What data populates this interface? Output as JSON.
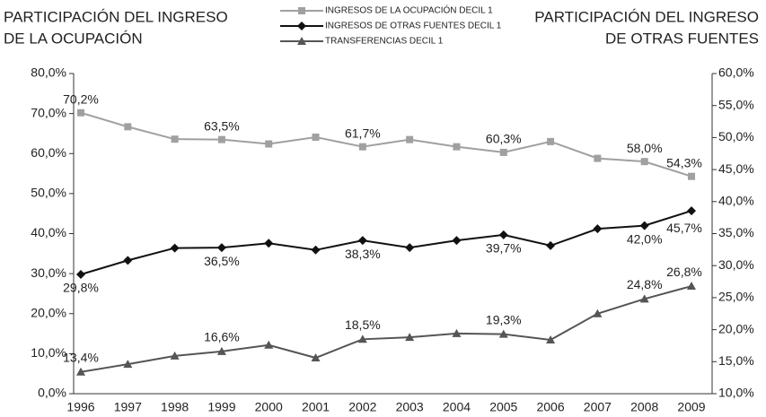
{
  "chart_data": {
    "type": "line",
    "y_label": [
      "PARTICIPACIÓN DEL INGRESO",
      "DE LA OCUPACIÓN"
    ],
    "y2_label": [
      "PARTICIPACIÓN DEL INGRESO",
      "DE OTRAS FUENTES"
    ],
    "categories": [
      "1996",
      "1997",
      "1998",
      "1999",
      "2000",
      "2001",
      "2002",
      "2003",
      "2004",
      "2005",
      "2006",
      "2007",
      "2008",
      "2009"
    ],
    "series": [
      {
        "name": "INGRESOS DE LA OCUPACIÓN DECIL 1",
        "color": "#a0a0a0",
        "marker": "square",
        "axis": "y",
        "values": [
          70.2,
          66.7,
          63.6,
          63.5,
          62.4,
          64.1,
          61.7,
          63.5,
          61.7,
          60.3,
          63.0,
          58.8,
          58.0,
          54.3
        ],
        "value_labels": [
          "70,2%",
          null,
          null,
          "63,5%",
          null,
          null,
          "61,7%",
          null,
          null,
          "60,3%",
          null,
          null,
          "58,0%",
          "54,3%"
        ]
      },
      {
        "name": "INGRESOS DE OTRAS FUENTES DECIL 1",
        "color": "#111111",
        "marker": "diamond",
        "axis": "y",
        "values": [
          29.8,
          33.3,
          36.4,
          36.5,
          37.6,
          35.9,
          38.3,
          36.5,
          38.3,
          39.7,
          37.0,
          41.2,
          42.0,
          45.7
        ],
        "value_labels": [
          "29,8%",
          null,
          null,
          "36,5%",
          null,
          null,
          "38,3%",
          null,
          null,
          "39,7%",
          null,
          null,
          "42,0%",
          "45,7%"
        ]
      },
      {
        "name": "TRANSFERENCIAS DECIL 1",
        "color": "#555555",
        "marker": "triangle",
        "axis": "y2",
        "values": [
          13.4,
          14.6,
          15.9,
          16.6,
          17.6,
          15.6,
          18.5,
          18.8,
          19.4,
          19.3,
          18.4,
          22.5,
          24.8,
          26.8
        ],
        "value_labels": [
          "13,4%",
          null,
          null,
          "16,6%",
          null,
          null,
          "18,5%",
          null,
          null,
          "19,3%",
          null,
          null,
          "24,8%",
          "26,8%"
        ]
      }
    ],
    "ylim": [
      0,
      80
    ],
    "yticks": [
      {
        "value": 0,
        "label": "0,0%"
      },
      {
        "value": 10,
        "label": "10,0%"
      },
      {
        "value": 20,
        "label": "20,0%"
      },
      {
        "value": 30,
        "label": "30,0%"
      },
      {
        "value": 40,
        "label": "40,0%"
      },
      {
        "value": 50,
        "label": "50,0%"
      },
      {
        "value": 60,
        "label": "60,0%"
      },
      {
        "value": 70,
        "label": "70,0%"
      },
      {
        "value": 80,
        "label": "80,0%"
      }
    ],
    "y2lim": [
      10,
      60
    ],
    "y2ticks": [
      {
        "value": 10,
        "label": "10,0%"
      },
      {
        "value": 15,
        "label": "15,0%"
      },
      {
        "value": 20,
        "label": "20,0%"
      },
      {
        "value": 25,
        "label": "25,0%"
      },
      {
        "value": 30,
        "label": "30,0%"
      },
      {
        "value": 35,
        "label": "35,0%"
      },
      {
        "value": 40,
        "label": "40,0%"
      },
      {
        "value": 45,
        "label": "45,0%"
      },
      {
        "value": 50,
        "label": "50,0%"
      },
      {
        "value": 55,
        "label": "55,0%"
      },
      {
        "value": 60,
        "label": "60,0%"
      }
    ]
  }
}
